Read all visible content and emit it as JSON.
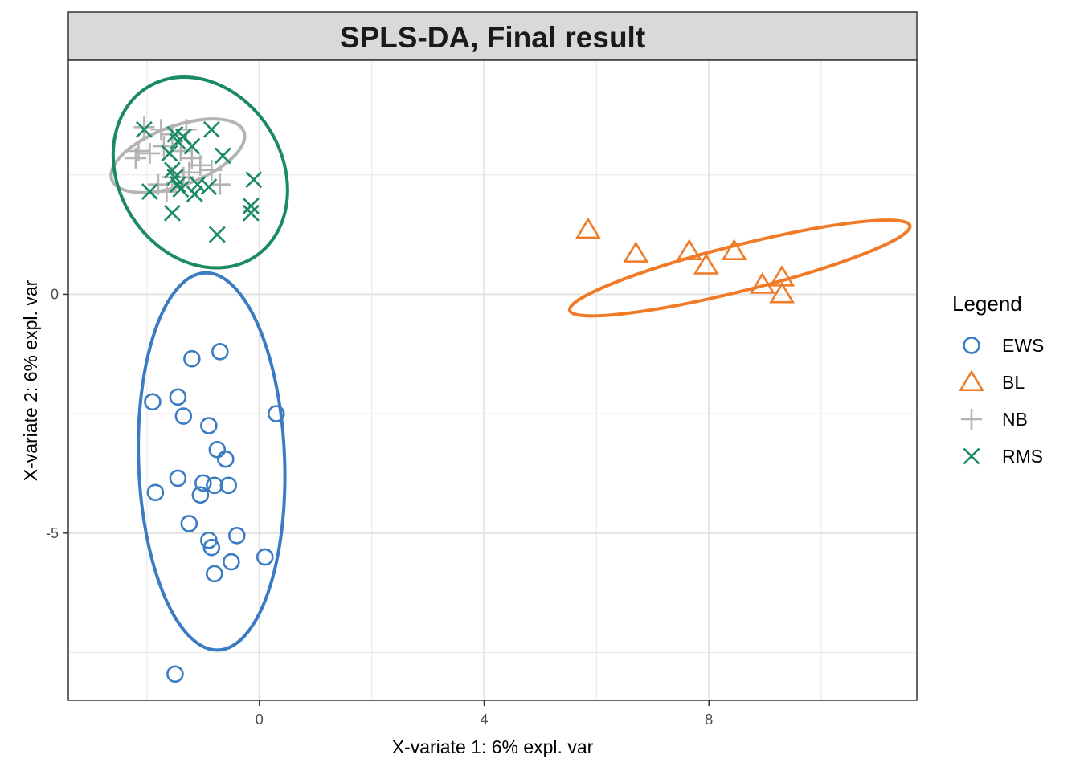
{
  "chart_data": {
    "type": "scatter",
    "title": "SPLS-DA, Final result",
    "xlabel": "X-variate 1: 6% expl. var",
    "ylabel": "X-variate 2: 6% expl. var",
    "xlim": [
      -3.4,
      11.7
    ],
    "ylim": [
      -8.5,
      4.9
    ],
    "x_ticks": [
      0,
      4,
      8
    ],
    "x_tick_labels": [
      "0",
      "4",
      "8"
    ],
    "y_ticks": [
      0,
      -5
    ],
    "y_tick_labels": [
      "0",
      "-5"
    ],
    "grid": true,
    "legend": {
      "title": "Legend",
      "position": "right"
    },
    "series": [
      {
        "name": "EWS",
        "color": "#3A7CC3",
        "marker": "circle",
        "points": [
          [
            -0.7,
            -1.2
          ],
          [
            -1.2,
            -1.35
          ],
          [
            -1.45,
            -2.15
          ],
          [
            -1.9,
            -2.25
          ],
          [
            -1.35,
            -2.55
          ],
          [
            0.3,
            -2.5
          ],
          [
            -0.9,
            -2.75
          ],
          [
            -0.75,
            -3.25
          ],
          [
            -0.6,
            -3.45
          ],
          [
            -1.45,
            -3.85
          ],
          [
            -1.0,
            -3.95
          ],
          [
            -0.8,
            -4.0
          ],
          [
            -0.55,
            -4.0
          ],
          [
            -1.85,
            -4.15
          ],
          [
            -1.05,
            -4.2
          ],
          [
            -1.25,
            -4.8
          ],
          [
            -0.4,
            -5.05
          ],
          [
            -0.9,
            -5.15
          ],
          [
            -0.85,
            -5.3
          ],
          [
            0.1,
            -5.5
          ],
          [
            -0.5,
            -5.6
          ],
          [
            -0.8,
            -5.85
          ],
          [
            -1.5,
            -7.95
          ]
        ],
        "ellipse": {
          "cx": -0.85,
          "cy": -3.5,
          "rx": 1.3,
          "ry": 3.95,
          "angle_deg": -2
        }
      },
      {
        "name": "BL",
        "color": "#F07A25",
        "marker": "triangle",
        "points": [
          [
            5.85,
            1.35
          ],
          [
            6.7,
            0.85
          ],
          [
            7.65,
            0.9
          ],
          [
            7.95,
            0.6
          ],
          [
            8.45,
            0.9
          ],
          [
            8.95,
            0.2
          ],
          [
            9.3,
            0.35
          ],
          [
            9.3,
            0.0
          ]
        ],
        "ellipse": {
          "cx": 8.55,
          "cy": 0.55,
          "rx": 3.12,
          "ry": 0.48,
          "angle_deg": -14
        }
      },
      {
        "name": "NB",
        "color": "#B3B3B3",
        "marker": "plus",
        "points": [
          [
            -2.05,
            3.5
          ],
          [
            -1.75,
            3.45
          ],
          [
            -1.55,
            3.35
          ],
          [
            -1.3,
            3.45
          ],
          [
            -2.15,
            3.0
          ],
          [
            -1.95,
            2.95
          ],
          [
            -1.7,
            3.1
          ],
          [
            -2.2,
            2.85
          ],
          [
            -1.4,
            3.0
          ],
          [
            -1.2,
            2.85
          ],
          [
            -1.05,
            2.7
          ],
          [
            -0.85,
            2.6
          ],
          [
            -1.55,
            2.45
          ],
          [
            -1.8,
            2.3
          ],
          [
            -0.7,
            2.3
          ],
          [
            -1.65,
            2.15
          ],
          [
            -1.35,
            2.45
          ],
          [
            -1.25,
            2.55
          ]
        ],
        "ellipse": {
          "cx": -1.45,
          "cy": 2.9,
          "rx": 1.25,
          "ry": 0.62,
          "angle_deg": -20
        }
      },
      {
        "name": "RMS",
        "color": "#1A8A62",
        "marker": "cross",
        "points": [
          [
            -2.05,
            3.45
          ],
          [
            -1.5,
            3.35
          ],
          [
            -1.35,
            3.3
          ],
          [
            -1.45,
            3.2
          ],
          [
            -0.85,
            3.45
          ],
          [
            -1.6,
            2.95
          ],
          [
            -1.2,
            3.1
          ],
          [
            -0.65,
            2.9
          ],
          [
            -1.55,
            2.6
          ],
          [
            -1.5,
            2.45
          ],
          [
            -1.45,
            2.3
          ],
          [
            -1.1,
            2.3
          ],
          [
            -0.9,
            2.25
          ],
          [
            -0.1,
            2.4
          ],
          [
            -1.95,
            2.15
          ],
          [
            -1.4,
            2.2
          ],
          [
            -1.15,
            2.1
          ],
          [
            -0.15,
            1.85
          ],
          [
            -0.15,
            1.7
          ],
          [
            -1.55,
            1.7
          ],
          [
            -0.75,
            1.25
          ]
        ],
        "ellipse": {
          "cx": -1.05,
          "cy": 2.55,
          "rx": 1.45,
          "ry": 2.1,
          "angle_deg": -32
        }
      }
    ]
  }
}
